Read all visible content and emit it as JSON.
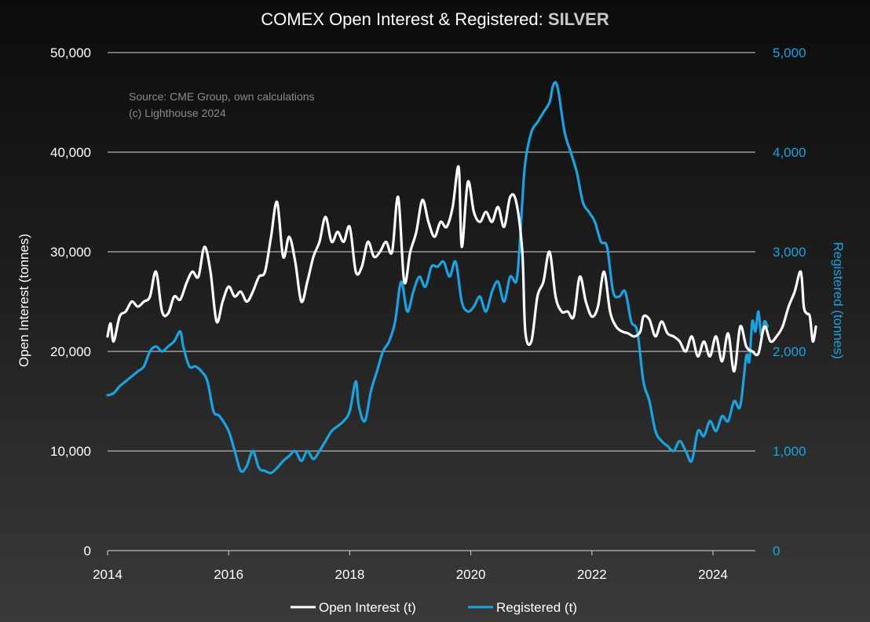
{
  "chart_data": {
    "type": "line",
    "title": "COMEX Open Interest & Registered: ",
    "title_emphasis": "SILVER",
    "source_lines": [
      "Source: CME Group, own calculations",
      "(c) Lighthouse 2024"
    ],
    "xlabel": "",
    "ylabel": "Open Interest (tonnes)",
    "y2label": "Registered (tonnes)",
    "xlim": [
      2014,
      2024.7
    ],
    "ylim": [
      0,
      50000
    ],
    "y2lim": [
      0,
      5000
    ],
    "x_ticks": [
      2014,
      2016,
      2018,
      2020,
      2022,
      2024
    ],
    "x_tick_labels": [
      "2014",
      "2016",
      "2018",
      "2020",
      "2022",
      "2024"
    ],
    "y_ticks": [
      0,
      10000,
      20000,
      30000,
      40000,
      50000
    ],
    "y_tick_labels": [
      "0",
      "10,000",
      "20,000",
      "30,000",
      "40,000",
      "50,000"
    ],
    "y2_ticks": [
      0,
      1000,
      2000,
      3000,
      4000,
      5000
    ],
    "y2_tick_labels": [
      "0",
      "1,000",
      "2,000",
      "3,000",
      "4,000",
      "5,000"
    ],
    "grid": true,
    "legend_position": "bottom-center",
    "colors": {
      "open_interest": "#ffffff",
      "registered": "#1aa3e0"
    },
    "series": [
      {
        "name": "Open Interest (t)",
        "axis": "left",
        "points": [
          [
            2014.0,
            21500
          ],
          [
            2014.05,
            22800
          ],
          [
            2014.1,
            21000
          ],
          [
            2014.2,
            23500
          ],
          [
            2014.3,
            24000
          ],
          [
            2014.4,
            25000
          ],
          [
            2014.5,
            24500
          ],
          [
            2014.6,
            25000
          ],
          [
            2014.7,
            25500
          ],
          [
            2014.8,
            28000
          ],
          [
            2014.9,
            24000
          ],
          [
            2015.0,
            23800
          ],
          [
            2015.1,
            25500
          ],
          [
            2015.2,
            25200
          ],
          [
            2015.3,
            26800
          ],
          [
            2015.4,
            28000
          ],
          [
            2015.5,
            27500
          ],
          [
            2015.6,
            30500
          ],
          [
            2015.7,
            28000
          ],
          [
            2015.8,
            23000
          ],
          [
            2015.9,
            25000
          ],
          [
            2016.0,
            26500
          ],
          [
            2016.1,
            25500
          ],
          [
            2016.2,
            26000
          ],
          [
            2016.3,
            25000
          ],
          [
            2016.4,
            26000
          ],
          [
            2016.5,
            27500
          ],
          [
            2016.6,
            28000
          ],
          [
            2016.7,
            31500
          ],
          [
            2016.8,
            35000
          ],
          [
            2016.9,
            29500
          ],
          [
            2017.0,
            31500
          ],
          [
            2017.1,
            29000
          ],
          [
            2017.2,
            25000
          ],
          [
            2017.3,
            27000
          ],
          [
            2017.4,
            29500
          ],
          [
            2017.5,
            31000
          ],
          [
            2017.6,
            33500
          ],
          [
            2017.7,
            31000
          ],
          [
            2017.8,
            32000
          ],
          [
            2017.9,
            31000
          ],
          [
            2018.0,
            32500
          ],
          [
            2018.1,
            28000
          ],
          [
            2018.2,
            28500
          ],
          [
            2018.3,
            31000
          ],
          [
            2018.4,
            29500
          ],
          [
            2018.5,
            30000
          ],
          [
            2018.6,
            31000
          ],
          [
            2018.7,
            30000
          ],
          [
            2018.8,
            35500
          ],
          [
            2018.9,
            27000
          ],
          [
            2019.0,
            30000
          ],
          [
            2019.1,
            32000
          ],
          [
            2019.2,
            35200
          ],
          [
            2019.3,
            33000
          ],
          [
            2019.4,
            31500
          ],
          [
            2019.5,
            33000
          ],
          [
            2019.6,
            32500
          ],
          [
            2019.7,
            34500
          ],
          [
            2019.8,
            38500
          ],
          [
            2019.85,
            30500
          ],
          [
            2019.95,
            37000
          ],
          [
            2020.05,
            34000
          ],
          [
            2020.15,
            33000
          ],
          [
            2020.25,
            34000
          ],
          [
            2020.35,
            33000
          ],
          [
            2020.45,
            34500
          ],
          [
            2020.55,
            32500
          ],
          [
            2020.65,
            35500
          ],
          [
            2020.75,
            35000
          ],
          [
            2020.85,
            30000
          ],
          [
            2020.9,
            22000
          ],
          [
            2021.0,
            21000
          ],
          [
            2021.1,
            25500
          ],
          [
            2021.2,
            27000
          ],
          [
            2021.3,
            30000
          ],
          [
            2021.4,
            25500
          ],
          [
            2021.5,
            24000
          ],
          [
            2021.6,
            24000
          ],
          [
            2021.7,
            23500
          ],
          [
            2021.8,
            27500
          ],
          [
            2021.9,
            25000
          ],
          [
            2022.0,
            23500
          ],
          [
            2022.1,
            24500
          ],
          [
            2022.2,
            28000
          ],
          [
            2022.3,
            24000
          ],
          [
            2022.4,
            22500
          ],
          [
            2022.5,
            22000
          ],
          [
            2022.6,
            21800
          ],
          [
            2022.7,
            21500
          ],
          [
            2022.8,
            22000
          ],
          [
            2022.85,
            23500
          ],
          [
            2022.95,
            23200
          ],
          [
            2023.05,
            21500
          ],
          [
            2023.15,
            23000
          ],
          [
            2023.25,
            21800
          ],
          [
            2023.35,
            21500
          ],
          [
            2023.45,
            21000
          ],
          [
            2023.55,
            20000
          ],
          [
            2023.65,
            21500
          ],
          [
            2023.75,
            19500
          ],
          [
            2023.85,
            21000
          ],
          [
            2023.95,
            19500
          ],
          [
            2024.05,
            21500
          ],
          [
            2024.15,
            19000
          ],
          [
            2024.25,
            21800
          ],
          [
            2024.35,
            18000
          ],
          [
            2024.45,
            22500
          ],
          [
            2024.55,
            20500
          ],
          [
            2024.65,
            20000
          ],
          [
            2024.75,
            19800
          ],
          [
            2024.85,
            22500
          ],
          [
            2024.95,
            21000
          ],
          [
            2025.05,
            21500
          ],
          [
            2025.15,
            22500
          ],
          [
            2025.25,
            24500
          ],
          [
            2025.35,
            26000
          ],
          [
            2025.45,
            28000
          ],
          [
            2025.5,
            24500
          ],
          [
            2025.55,
            23800
          ],
          [
            2025.6,
            23500
          ],
          [
            2025.65,
            21000
          ],
          [
            2025.7,
            22500
          ]
        ]
      },
      {
        "name": "Registered (t)",
        "axis": "right",
        "points": [
          [
            2014.0,
            1560
          ],
          [
            2014.1,
            1580
          ],
          [
            2014.2,
            1650
          ],
          [
            2014.3,
            1700
          ],
          [
            2014.4,
            1750
          ],
          [
            2014.5,
            1800
          ],
          [
            2014.6,
            1850
          ],
          [
            2014.7,
            2000
          ],
          [
            2014.8,
            2050
          ],
          [
            2014.9,
            2000
          ],
          [
            2015.0,
            2050
          ],
          [
            2015.1,
            2100
          ],
          [
            2015.2,
            2200
          ],
          [
            2015.25,
            2050
          ],
          [
            2015.35,
            1850
          ],
          [
            2015.45,
            1850
          ],
          [
            2015.55,
            1800
          ],
          [
            2015.65,
            1700
          ],
          [
            2015.75,
            1400
          ],
          [
            2015.85,
            1350
          ],
          [
            2016.0,
            1200
          ],
          [
            2016.1,
            1000
          ],
          [
            2016.2,
            800
          ],
          [
            2016.3,
            850
          ],
          [
            2016.4,
            1000
          ],
          [
            2016.5,
            830
          ],
          [
            2016.6,
            800
          ],
          [
            2016.7,
            780
          ],
          [
            2016.8,
            830
          ],
          [
            2016.9,
            900
          ],
          [
            2017.0,
            950
          ],
          [
            2017.1,
            1000
          ],
          [
            2017.2,
            900
          ],
          [
            2017.3,
            1000
          ],
          [
            2017.4,
            920
          ],
          [
            2017.5,
            1000
          ],
          [
            2017.6,
            1100
          ],
          [
            2017.7,
            1200
          ],
          [
            2017.8,
            1250
          ],
          [
            2017.9,
            1300
          ],
          [
            2018.0,
            1400
          ],
          [
            2018.1,
            1700
          ],
          [
            2018.15,
            1450
          ],
          [
            2018.25,
            1300
          ],
          [
            2018.35,
            1600
          ],
          [
            2018.45,
            1800
          ],
          [
            2018.55,
            2000
          ],
          [
            2018.65,
            2100
          ],
          [
            2018.75,
            2300
          ],
          [
            2018.85,
            2700
          ],
          [
            2018.95,
            2400
          ],
          [
            2019.05,
            2600
          ],
          [
            2019.15,
            2750
          ],
          [
            2019.25,
            2650
          ],
          [
            2019.35,
            2850
          ],
          [
            2019.45,
            2850
          ],
          [
            2019.55,
            2900
          ],
          [
            2019.65,
            2750
          ],
          [
            2019.75,
            2900
          ],
          [
            2019.85,
            2500
          ],
          [
            2019.95,
            2400
          ],
          [
            2020.05,
            2450
          ],
          [
            2020.15,
            2550
          ],
          [
            2020.25,
            2400
          ],
          [
            2020.35,
            2600
          ],
          [
            2020.45,
            2700
          ],
          [
            2020.55,
            2500
          ],
          [
            2020.65,
            2750
          ],
          [
            2020.75,
            2700
          ],
          [
            2020.8,
            3000
          ],
          [
            2020.85,
            3500
          ],
          [
            2020.9,
            3900
          ],
          [
            2021.0,
            4200
          ],
          [
            2021.1,
            4300
          ],
          [
            2021.2,
            4400
          ],
          [
            2021.3,
            4500
          ],
          [
            2021.35,
            4650
          ],
          [
            2021.4,
            4700
          ],
          [
            2021.45,
            4600
          ],
          [
            2021.55,
            4200
          ],
          [
            2021.65,
            4000
          ],
          [
            2021.75,
            3800
          ],
          [
            2021.85,
            3500
          ],
          [
            2021.95,
            3400
          ],
          [
            2022.05,
            3300
          ],
          [
            2022.15,
            3100
          ],
          [
            2022.25,
            3050
          ],
          [
            2022.35,
            2600
          ],
          [
            2022.45,
            2550
          ],
          [
            2022.55,
            2600
          ],
          [
            2022.65,
            2300
          ],
          [
            2022.75,
            2200
          ],
          [
            2022.85,
            1700
          ],
          [
            2022.95,
            1500
          ],
          [
            2023.05,
            1200
          ],
          [
            2023.15,
            1100
          ],
          [
            2023.25,
            1050
          ],
          [
            2023.35,
            1000
          ],
          [
            2023.45,
            1100
          ],
          [
            2023.55,
            1000
          ],
          [
            2023.65,
            900
          ],
          [
            2023.75,
            1200
          ],
          [
            2023.85,
            1150
          ],
          [
            2023.95,
            1300
          ],
          [
            2024.05,
            1200
          ],
          [
            2024.15,
            1350
          ],
          [
            2024.25,
            1300
          ],
          [
            2024.35,
            1500
          ],
          [
            2024.45,
            1450
          ],
          [
            2024.55,
            1950
          ],
          [
            2024.6,
            1900
          ],
          [
            2024.65,
            2300
          ],
          [
            2024.7,
            2200
          ],
          [
            2024.75,
            2400
          ],
          [
            2024.8,
            2150
          ],
          [
            2024.85,
            2300
          ],
          [
            2024.9,
            2250
          ]
        ]
      }
    ]
  }
}
